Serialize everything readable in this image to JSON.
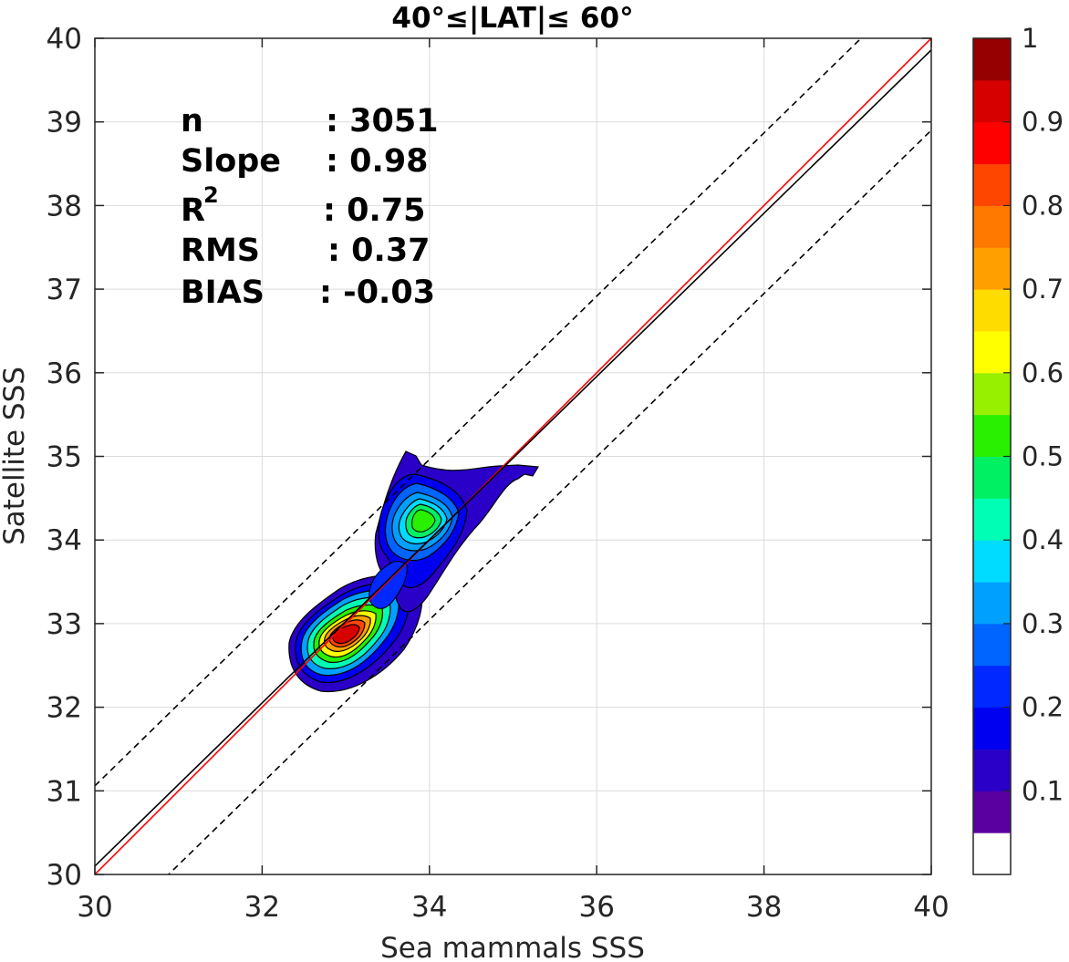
{
  "chart_data": {
    "type": "contour",
    "title": "40°≤|LAT|≤ 60°",
    "xlabel": "Sea mammals  SSS",
    "ylabel": "Satellite SSS",
    "xlim": [
      30,
      40
    ],
    "ylim": [
      30,
      40
    ],
    "x_ticks": [
      "30",
      "32",
      "34",
      "36",
      "38",
      "40"
    ],
    "y_ticks": [
      "30",
      "31",
      "32",
      "33",
      "34",
      "35",
      "36",
      "37",
      "38",
      "39",
      "40"
    ],
    "grid": true,
    "stats": [
      {
        "label": "n",
        "value": ": 3051"
      },
      {
        "label": "Slope",
        "value": ": 0.98"
      },
      {
        "label": "R",
        "superscript": "2",
        "value": ": 0.75"
      },
      {
        "label": "RMS",
        "value": ": 0.37"
      },
      {
        "label": "BIAS",
        "value": ": -0.03"
      }
    ],
    "lines": [
      {
        "style": "solid",
        "color": "#ff0000",
        "x": [
          30,
          40
        ],
        "y": [
          30,
          40
        ]
      },
      {
        "style": "solid",
        "color": "#000000",
        "x": [
          30,
          40
        ],
        "y": [
          30.1,
          39.86
        ]
      },
      {
        "style": "dashed",
        "color": "#000000",
        "x": [
          30,
          40
        ],
        "y": [
          31.06,
          40.82
        ]
      },
      {
        "style": "dashed",
        "color": "#000000",
        "x": [
          30,
          40
        ],
        "y": [
          29.14,
          38.9
        ]
      }
    ],
    "density_peaks": [
      {
        "x": 32.95,
        "y": 32.85,
        "max_level": 1.0
      },
      {
        "x": 33.85,
        "y": 34.25,
        "max_level": 0.5
      }
    ],
    "colorbar": {
      "ticks": [
        "0.1",
        "0.2",
        "0.3",
        "0.4",
        "0.5",
        "0.6",
        "0.7",
        "0.8",
        "0.9",
        "1"
      ],
      "colors": [
        "#ffffff",
        "#5a00a0",
        "#2a00c8",
        "#0000f0",
        "#0028ff",
        "#0064ff",
        "#00a0ff",
        "#00dcff",
        "#00ffb4",
        "#00f064",
        "#28f000",
        "#96f000",
        "#ffff00",
        "#ffdc00",
        "#ffa000",
        "#ff7800",
        "#ff4600",
        "#ff0000",
        "#d70000",
        "#960000"
      ]
    }
  }
}
